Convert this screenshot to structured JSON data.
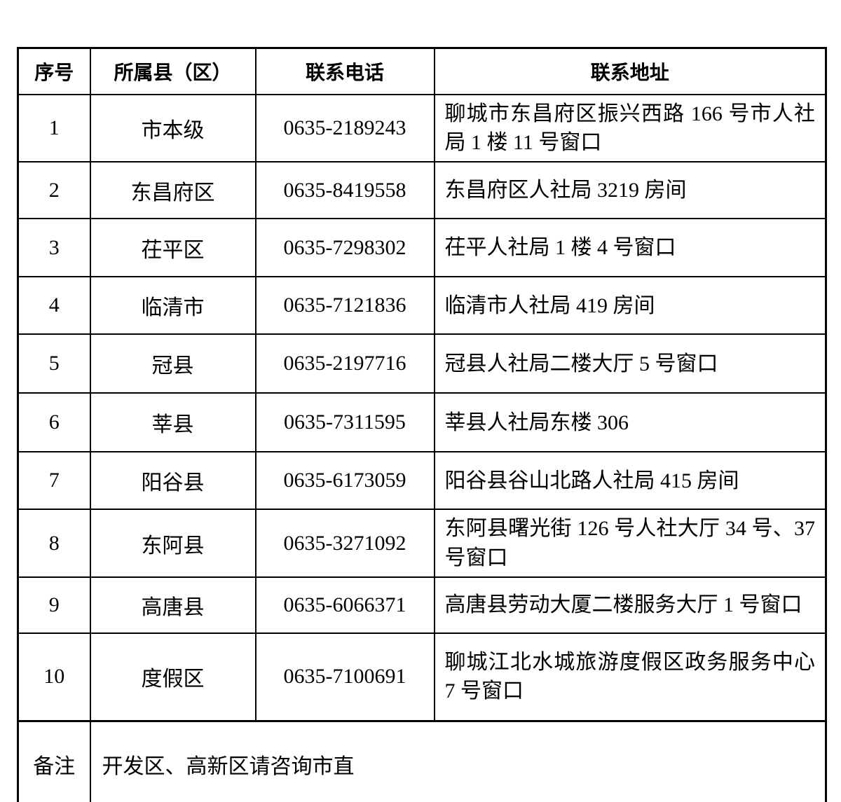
{
  "table": {
    "headers": {
      "no": "序号",
      "district": "所属县（区）",
      "phone": "联系电话",
      "address": "联系地址"
    },
    "rows": [
      {
        "no": "1",
        "district": "市本级",
        "phone": "0635-2189243",
        "address": "聊城市东昌府区振兴西路 166 号市人社局 1 楼 11 号窗口"
      },
      {
        "no": "2",
        "district": "东昌府区",
        "phone": "0635-8419558",
        "address": "东昌府区人社局 3219 房间"
      },
      {
        "no": "3",
        "district": "茌平区",
        "phone": "0635-7298302",
        "address": "茌平人社局 1 楼 4 号窗口"
      },
      {
        "no": "4",
        "district": "临清市",
        "phone": "0635-7121836",
        "address": "临清市人社局 419 房间"
      },
      {
        "no": "5",
        "district": "冠县",
        "phone": "0635-2197716",
        "address": "冠县人社局二楼大厅 5 号窗口"
      },
      {
        "no": "6",
        "district": "莘县",
        "phone": "0635-7311595",
        "address": "莘县人社局东楼 306"
      },
      {
        "no": "7",
        "district": "阳谷县",
        "phone": "0635-6173059",
        "address": "阳谷县谷山北路人社局 415 房间"
      },
      {
        "no": "8",
        "district": "东阿县",
        "phone": "0635-3271092",
        "address": "东阿县曙光街 126 号人社大厅 34 号、37 号窗口"
      },
      {
        "no": "9",
        "district": "高唐县",
        "phone": "0635-6066371",
        "address": "高唐县劳动大厦二楼服务大厅 1 号窗口"
      },
      {
        "no": "10",
        "district": "度假区",
        "phone": "0635-7100691",
        "address": "聊城江北水城旅游度假区政务服务中心 7 号窗口"
      }
    ],
    "remark": {
      "label": "备注",
      "text": "开发区、高新区请咨询市直"
    }
  }
}
